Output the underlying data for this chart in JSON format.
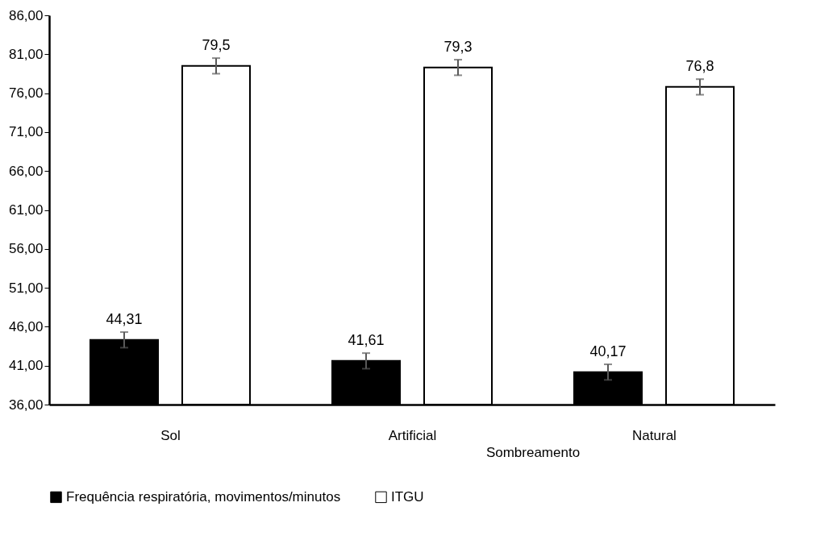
{
  "chart_data": {
    "type": "bar",
    "categories": [
      "Sol",
      "Artificial",
      "Natural"
    ],
    "series": [
      {
        "name": "Frequência respiratória, movimentos/minutos",
        "color": "#000000",
        "values": [
          44.31,
          41.61,
          40.17
        ],
        "errors": [
          1,
          1,
          1
        ],
        "value_labels": [
          "44,31",
          "41,61",
          "40,17"
        ]
      },
      {
        "name": "ITGU",
        "color": "#ffffff",
        "values": [
          79.5,
          79.3,
          76.8
        ],
        "errors": [
          1,
          1,
          1
        ],
        "value_labels": [
          "79,5",
          "79,3",
          "76,8"
        ]
      }
    ],
    "ylim": [
      36,
      86
    ],
    "yticks": [
      {
        "value": 36,
        "label": "36,00"
      },
      {
        "value": 41,
        "label": "41,00"
      },
      {
        "value": 46,
        "label": "46,00"
      },
      {
        "value": 51,
        "label": "51,00"
      },
      {
        "value": 56,
        "label": "56,00"
      },
      {
        "value": 61,
        "label": "61,00"
      },
      {
        "value": 66,
        "label": "66,00"
      },
      {
        "value": 71,
        "label": "71,00"
      },
      {
        "value": 76,
        "label": "76,00"
      },
      {
        "value": 81,
        "label": "81,00"
      },
      {
        "value": 86,
        "label": "86,00"
      }
    ],
    "annotations": [
      "Sombreamento"
    ],
    "grid": false,
    "legend": "bottom"
  }
}
